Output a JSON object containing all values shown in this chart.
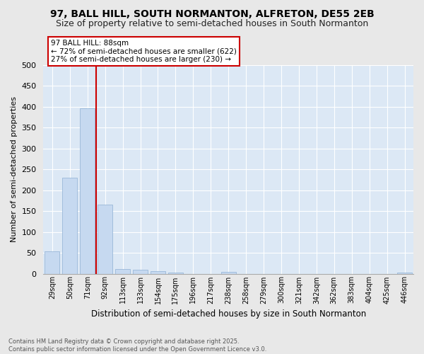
{
  "title": "97, BALL HILL, SOUTH NORMANTON, ALFRETON, DE55 2EB",
  "subtitle": "Size of property relative to semi-detached houses in South Normanton",
  "xlabel": "Distribution of semi-detached houses by size in South Normanton",
  "ylabel": "Number of semi-detached properties",
  "categories": [
    "29sqm",
    "50sqm",
    "71sqm",
    "92sqm",
    "113sqm",
    "133sqm",
    "154sqm",
    "175sqm",
    "196sqm",
    "217sqm",
    "238sqm",
    "258sqm",
    "279sqm",
    "300sqm",
    "321sqm",
    "342sqm",
    "362sqm",
    "383sqm",
    "404sqm",
    "425sqm",
    "446sqm"
  ],
  "values": [
    53,
    230,
    396,
    165,
    11,
    9,
    6,
    3,
    0,
    0,
    4,
    0,
    0,
    0,
    0,
    0,
    0,
    0,
    0,
    0,
    3
  ],
  "bar_color": "#c6d9f0",
  "bar_edge_color": "#9ab8d8",
  "vline_color": "#cc0000",
  "annotation_title": "97 BALL HILL: 88sqm",
  "annotation_line1": "← 72% of semi-detached houses are smaller (622)",
  "annotation_line2": "27% of semi-detached houses are larger (230) →",
  "annotation_box_edgecolor": "#cc0000",
  "ylim": [
    0,
    500
  ],
  "yticks": [
    0,
    50,
    100,
    150,
    200,
    250,
    300,
    350,
    400,
    450,
    500
  ],
  "bg_color": "#dce8f5",
  "fig_bg_color": "#e8e8e8",
  "title_fontsize": 10,
  "subtitle_fontsize": 9,
  "footer1": "Contains HM Land Registry data © Crown copyright and database right 2025.",
  "footer2": "Contains public sector information licensed under the Open Government Licence v3.0."
}
